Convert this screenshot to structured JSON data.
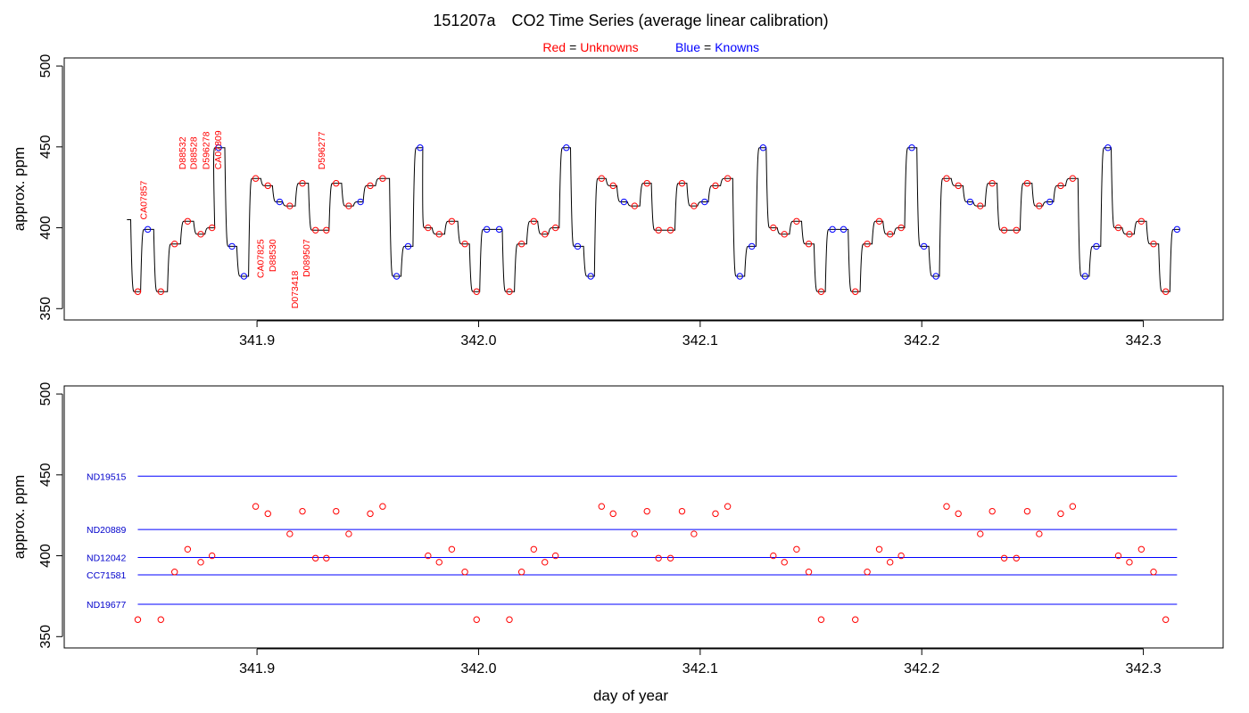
{
  "chart_data": {
    "type": "line",
    "title_id": "151207a",
    "title": "CO2 Time Series (average linear calibration)",
    "legend": {
      "red_key": "Red",
      "red_value": "Unknowns",
      "blue_key": "Blue",
      "blue_value": "Knowns",
      "equals": "=",
      "red_color": "#ff0000",
      "blue_color": "#0000ff"
    },
    "xlabel": "day of year",
    "ylabel_top": "approx. ppm",
    "ylabel_bottom": "approx. ppm",
    "xlim": [
      341.813,
      342.336
    ],
    "ylim": [
      343,
      505
    ],
    "xticks": [
      341.9,
      342.0,
      342.1,
      342.2,
      342.3
    ],
    "xtick_labels": [
      "341.9",
      "342.0",
      "342.1",
      "342.2",
      "342.3"
    ],
    "yticks": [
      350,
      400,
      450,
      500
    ],
    "ytick_labels": [
      "350",
      "400",
      "450",
      "500"
    ],
    "trace_color": "#000000",
    "standard_line_color": "#0000ff",
    "standards": [
      {
        "name": "ND19515",
        "ppm": 449.2
      },
      {
        "name": "ND20889",
        "ppm": 416.2
      },
      {
        "name": "ND12042",
        "ppm": 398.9
      },
      {
        "name": "CC71581",
        "ppm": 388.2
      },
      {
        "name": "ND19677",
        "ppm": 370.0
      }
    ],
    "unknowns": [
      {
        "day": 341.8462,
        "ppm": 360.5
      },
      {
        "day": 341.8566,
        "ppm": 360.5
      },
      {
        "day": 341.8628,
        "ppm": 390.0
      },
      {
        "day": 341.8687,
        "ppm": 404.0
      },
      {
        "day": 341.8746,
        "ppm": 396.0
      },
      {
        "day": 341.8797,
        "ppm": 400.0
      },
      {
        "day": 341.8994,
        "ppm": 430.5
      },
      {
        "day": 341.9049,
        "ppm": 426.0
      },
      {
        "day": 341.9148,
        "ppm": 413.5
      },
      {
        "day": 341.9205,
        "ppm": 427.5
      },
      {
        "day": 341.9264,
        "ppm": 398.5
      },
      {
        "day": 341.9313,
        "ppm": 398.5
      },
      {
        "day": 341.9357,
        "ppm": 427.5
      },
      {
        "day": 341.9414,
        "ppm": 413.5
      },
      {
        "day": 341.9511,
        "ppm": 426.0
      },
      {
        "day": 341.9567,
        "ppm": 430.5
      },
      {
        "day": 341.9772,
        "ppm": 400.0
      },
      {
        "day": 341.9822,
        "ppm": 396.0
      },
      {
        "day": 341.9879,
        "ppm": 404.0
      },
      {
        "day": 341.9938,
        "ppm": 390.0
      },
      {
        "day": 341.9991,
        "ppm": 360.5
      },
      {
        "day": 342.0139,
        "ppm": 360.5
      },
      {
        "day": 342.0194,
        "ppm": 390.0
      },
      {
        "day": 342.0249,
        "ppm": 404.0
      },
      {
        "day": 342.0299,
        "ppm": 396.0
      },
      {
        "day": 342.0347,
        "ppm": 400.0
      },
      {
        "day": 342.0555,
        "ppm": 430.5
      },
      {
        "day": 342.0607,
        "ppm": 426.0
      },
      {
        "day": 342.0704,
        "ppm": 413.5
      },
      {
        "day": 342.076,
        "ppm": 427.5
      },
      {
        "day": 342.0812,
        "ppm": 398.5
      },
      {
        "day": 342.0866,
        "ppm": 398.5
      },
      {
        "day": 342.0918,
        "ppm": 427.5
      },
      {
        "day": 342.0972,
        "ppm": 413.5
      },
      {
        "day": 342.1069,
        "ppm": 426.0
      },
      {
        "day": 342.1124,
        "ppm": 430.5
      },
      {
        "day": 342.133,
        "ppm": 400.0
      },
      {
        "day": 342.138,
        "ppm": 396.0
      },
      {
        "day": 342.1435,
        "ppm": 404.0
      },
      {
        "day": 342.149,
        "ppm": 390.0
      },
      {
        "day": 342.1546,
        "ppm": 360.5
      },
      {
        "day": 342.17,
        "ppm": 360.5
      },
      {
        "day": 342.1754,
        "ppm": 390.0
      },
      {
        "day": 342.1808,
        "ppm": 404.0
      },
      {
        "day": 342.1857,
        "ppm": 396.0
      },
      {
        "day": 342.1907,
        "ppm": 400.0
      },
      {
        "day": 342.2112,
        "ppm": 430.5
      },
      {
        "day": 342.2165,
        "ppm": 426.0
      },
      {
        "day": 342.2264,
        "ppm": 413.5
      },
      {
        "day": 342.2318,
        "ppm": 427.5
      },
      {
        "day": 342.2372,
        "ppm": 398.5
      },
      {
        "day": 342.2427,
        "ppm": 398.5
      },
      {
        "day": 342.2476,
        "ppm": 427.5
      },
      {
        "day": 342.253,
        "ppm": 413.5
      },
      {
        "day": 342.2627,
        "ppm": 426.0
      },
      {
        "day": 342.2681,
        "ppm": 430.5
      },
      {
        "day": 342.2887,
        "ppm": 400.0
      },
      {
        "day": 342.2937,
        "ppm": 396.0
      },
      {
        "day": 342.2991,
        "ppm": 404.0
      },
      {
        "day": 342.3046,
        "ppm": 390.0
      },
      {
        "day": 342.3101,
        "ppm": 360.5
      }
    ],
    "knowns": [
      {
        "day": 341.8507,
        "ppm": 399.0
      },
      {
        "day": 341.8827,
        "ppm": 449.5
      },
      {
        "day": 341.8887,
        "ppm": 388.5
      },
      {
        "day": 341.8941,
        "ppm": 370.0
      },
      {
        "day": 341.9102,
        "ppm": 416.0
      },
      {
        "day": 341.9467,
        "ppm": 416.0
      },
      {
        "day": 341.963,
        "ppm": 370.0
      },
      {
        "day": 341.9682,
        "ppm": 388.5
      },
      {
        "day": 341.9736,
        "ppm": 449.5
      },
      {
        "day": 342.0037,
        "ppm": 399.0
      },
      {
        "day": 342.0093,
        "ppm": 399.0
      },
      {
        "day": 342.0396,
        "ppm": 449.5
      },
      {
        "day": 342.0447,
        "ppm": 388.5
      },
      {
        "day": 342.0506,
        "ppm": 370.0
      },
      {
        "day": 342.0656,
        "ppm": 416.0
      },
      {
        "day": 342.102,
        "ppm": 416.0
      },
      {
        "day": 342.1179,
        "ppm": 370.0
      },
      {
        "day": 342.1233,
        "ppm": 388.5
      },
      {
        "day": 342.1284,
        "ppm": 449.5
      },
      {
        "day": 342.1597,
        "ppm": 399.0
      },
      {
        "day": 342.1647,
        "ppm": 399.0
      },
      {
        "day": 342.1955,
        "ppm": 449.5
      },
      {
        "day": 342.201,
        "ppm": 388.5
      },
      {
        "day": 342.2064,
        "ppm": 370.0
      },
      {
        "day": 342.2218,
        "ppm": 416.0
      },
      {
        "day": 342.2578,
        "ppm": 416.0
      },
      {
        "day": 342.2737,
        "ppm": 370.0
      },
      {
        "day": 342.2788,
        "ppm": 388.5
      },
      {
        "day": 342.284,
        "ppm": 449.5
      },
      {
        "day": 342.3152,
        "ppm": 399.0
      }
    ],
    "trace_start": {
      "day": 341.8413,
      "ppm": 405.0
    },
    "sample_labels": [
      {
        "text": "CA07857",
        "day": 341.8486,
        "ppm": 405.0,
        "side": "up"
      },
      {
        "text": "D88532",
        "day": 341.8661,
        "ppm": 436.0,
        "side": "up"
      },
      {
        "text": "D88528",
        "day": 341.8712,
        "ppm": 436.0,
        "side": "up"
      },
      {
        "text": "D596278",
        "day": 341.8769,
        "ppm": 436.0,
        "side": "up"
      },
      {
        "text": "CA07809",
        "day": 341.8822,
        "ppm": 436.0,
        "side": "up"
      },
      {
        "text": "CA07825",
        "day": 341.9013,
        "ppm": 393.0,
        "side": "down"
      },
      {
        "text": "D88530",
        "day": 341.9069,
        "ppm": 393.0,
        "side": "down"
      },
      {
        "text": "D073418",
        "day": 341.9169,
        "ppm": 373.5,
        "side": "down"
      },
      {
        "text": "D089507",
        "day": 341.9222,
        "ppm": 393.0,
        "side": "down"
      },
      {
        "text": "D596277",
        "day": 341.9289,
        "ppm": 436.0,
        "side": "up"
      }
    ]
  }
}
